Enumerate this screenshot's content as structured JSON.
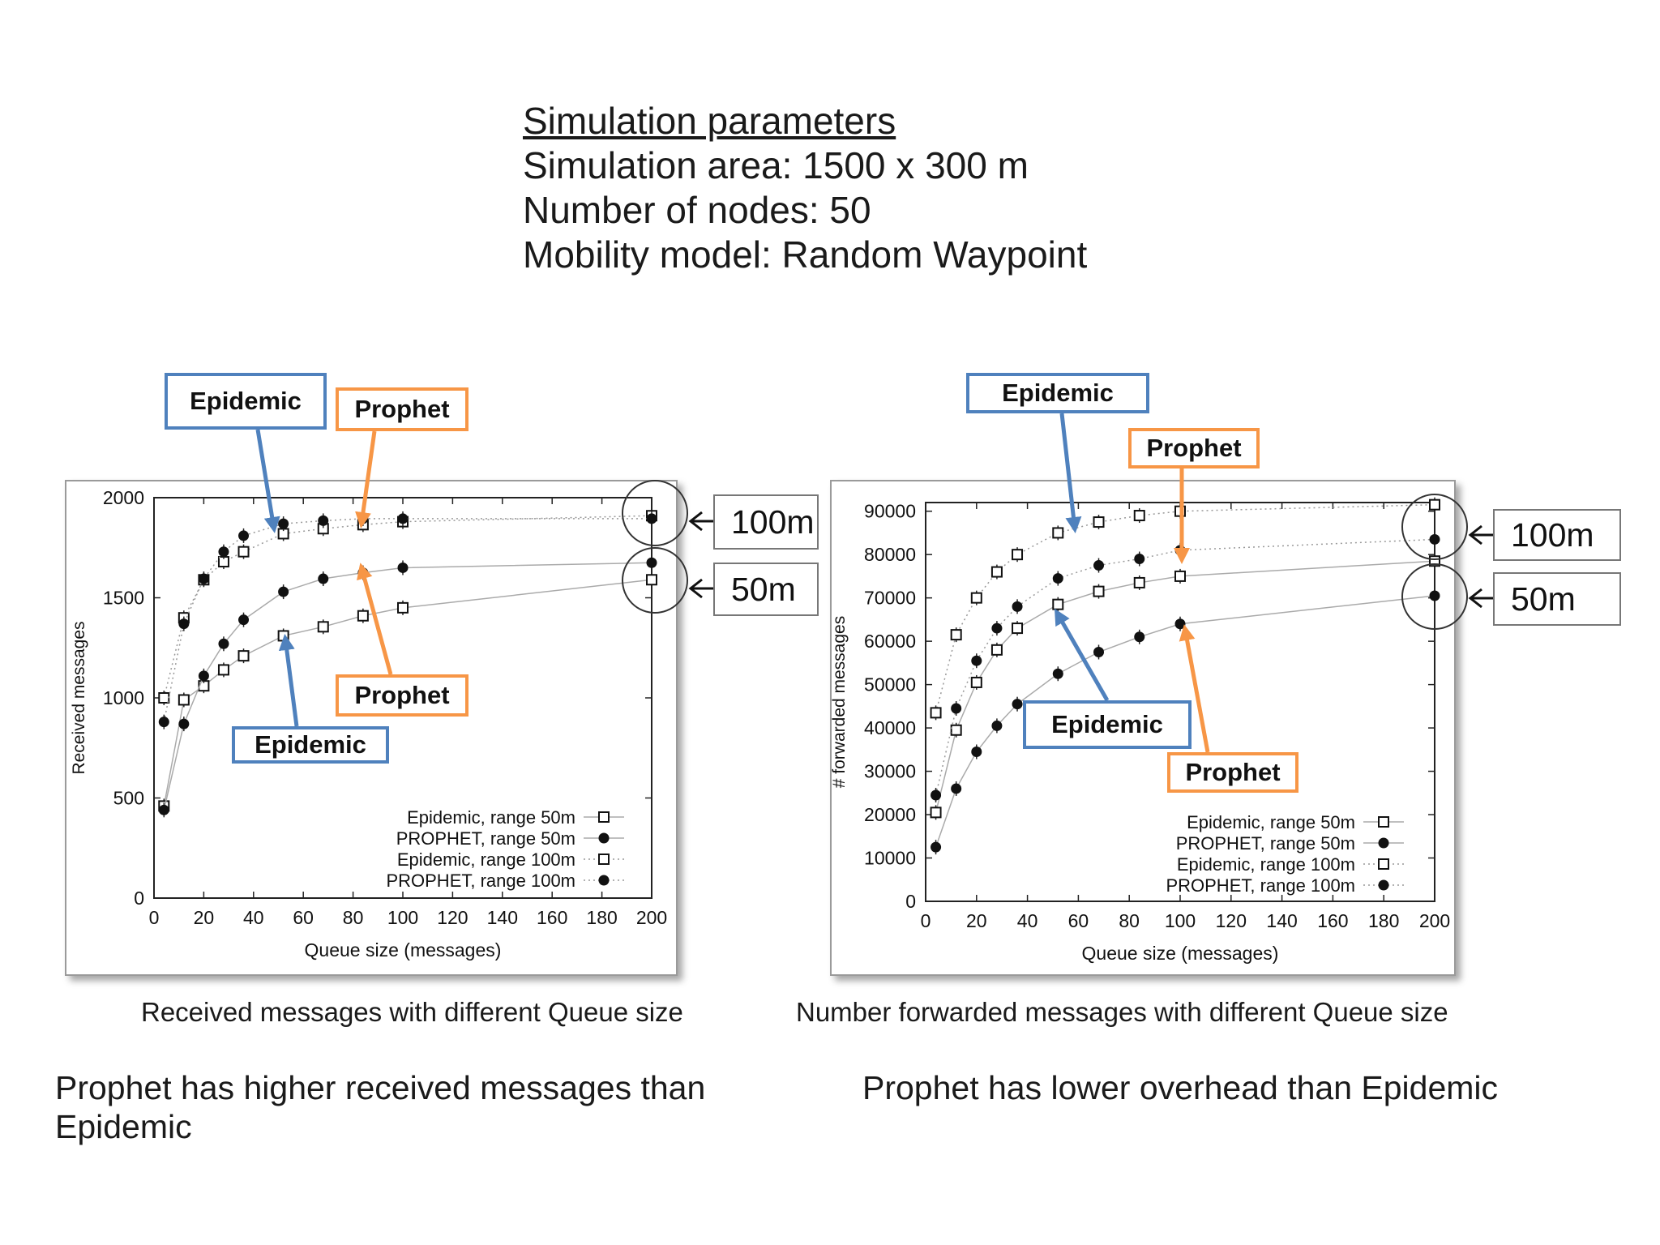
{
  "params": {
    "heading": "Simulation parameters",
    "lines": [
      "Simulation area: 1500 x 300 m",
      "Number of nodes: 50",
      "Mobility model: Random Waypoint"
    ]
  },
  "callouts": {
    "left_top_epidemic": "Epidemic",
    "left_top_prophet": "Prophet",
    "left_mid_prophet": "Prophet",
    "left_mid_epidemic": "Epidemic",
    "right_top_epidemic": "Epidemic",
    "right_top_prophet": "Prophet",
    "right_mid_epidemic": "Epidemic",
    "right_mid_prophet": "Prophet"
  },
  "range_labels": {
    "left_100": "100m",
    "left_50": "50m",
    "right_100": "100m",
    "right_50": "50m"
  },
  "captions": {
    "left": "Received messages with different Queue size",
    "right": "Number forwarded messages with different Queue size"
  },
  "conclusions": {
    "left": "Prophet  has higher received messages than Epidemic",
    "right": "Prophet has lower overhead than Epidemic"
  },
  "colors": {
    "epidemic": "#4f81bd",
    "prophet": "#f79646"
  },
  "chart_data": [
    {
      "type": "scatter",
      "xlabel": "Queue size (messages)",
      "ylabel": "Received messages",
      "xlim": [
        0,
        200
      ],
      "ylim": [
        0,
        2000
      ],
      "xticks": [
        0,
        20,
        40,
        60,
        80,
        100,
        120,
        140,
        160,
        180,
        200
      ],
      "yticks": [
        0,
        500,
        1000,
        1500,
        2000
      ],
      "legend_position": "bottom-right",
      "series": [
        {
          "name": "Epidemic, range 50m",
          "marker": "open-square",
          "x": [
            4,
            12,
            20,
            28,
            36,
            52,
            68,
            84,
            100,
            200
          ],
          "y": [
            460,
            990,
            1060,
            1140,
            1210,
            1310,
            1355,
            1410,
            1450,
            1590
          ]
        },
        {
          "name": "PROPHET, range 50m",
          "marker": "filled-circle",
          "x": [
            4,
            12,
            20,
            28,
            36,
            52,
            68,
            84,
            100,
            200
          ],
          "y": [
            440,
            870,
            1110,
            1270,
            1390,
            1530,
            1595,
            1625,
            1650,
            1675
          ]
        },
        {
          "name": "Epidemic, range 100m",
          "marker": "open-square",
          "x": [
            4,
            12,
            20,
            28,
            36,
            52,
            68,
            84,
            100,
            200
          ],
          "y": [
            1000,
            1400,
            1590,
            1680,
            1730,
            1820,
            1845,
            1865,
            1880,
            1910
          ]
        },
        {
          "name": "PROPHET, range 100m",
          "marker": "filled-circle",
          "x": [
            4,
            12,
            20,
            28,
            36,
            52,
            68,
            84,
            100,
            200
          ],
          "y": [
            880,
            1370,
            1595,
            1730,
            1810,
            1870,
            1885,
            1895,
            1895,
            1895
          ]
        }
      ]
    },
    {
      "type": "scatter",
      "xlabel": "Queue size (messages)",
      "ylabel": "# forwarded messages",
      "xlim": [
        0,
        200
      ],
      "ylim": [
        0,
        92000
      ],
      "xticks": [
        0,
        20,
        40,
        60,
        80,
        100,
        120,
        140,
        160,
        180,
        200
      ],
      "yticks": [
        0,
        10000,
        20000,
        30000,
        40000,
        50000,
        60000,
        70000,
        80000,
        90000
      ],
      "legend_position": "bottom-right",
      "series": [
        {
          "name": "Epidemic, range 50m",
          "marker": "open-square",
          "x": [
            4,
            12,
            20,
            28,
            36,
            52,
            68,
            84,
            100,
            200
          ],
          "y": [
            20500,
            39500,
            50500,
            58000,
            63000,
            68500,
            71500,
            73500,
            75000,
            78500
          ]
        },
        {
          "name": "PROPHET, range 50m",
          "marker": "filled-circle",
          "x": [
            4,
            12,
            20,
            28,
            36,
            52,
            68,
            84,
            100,
            200
          ],
          "y": [
            12500,
            26000,
            34500,
            40500,
            45500,
            52500,
            57500,
            61000,
            64000,
            70500
          ]
        },
        {
          "name": "Epidemic, range 100m",
          "marker": "open-square",
          "x": [
            4,
            12,
            20,
            28,
            36,
            52,
            68,
            84,
            100,
            200
          ],
          "y": [
            43500,
            61500,
            70000,
            76000,
            80000,
            85000,
            87500,
            89000,
            90000,
            91500
          ]
        },
        {
          "name": "PROPHET, range 100m",
          "marker": "filled-circle",
          "x": [
            4,
            12,
            20,
            28,
            36,
            52,
            68,
            84,
            100,
            200
          ],
          "y": [
            24500,
            44500,
            55500,
            63000,
            68000,
            74500,
            77500,
            79000,
            81000,
            83500
          ]
        }
      ]
    }
  ]
}
